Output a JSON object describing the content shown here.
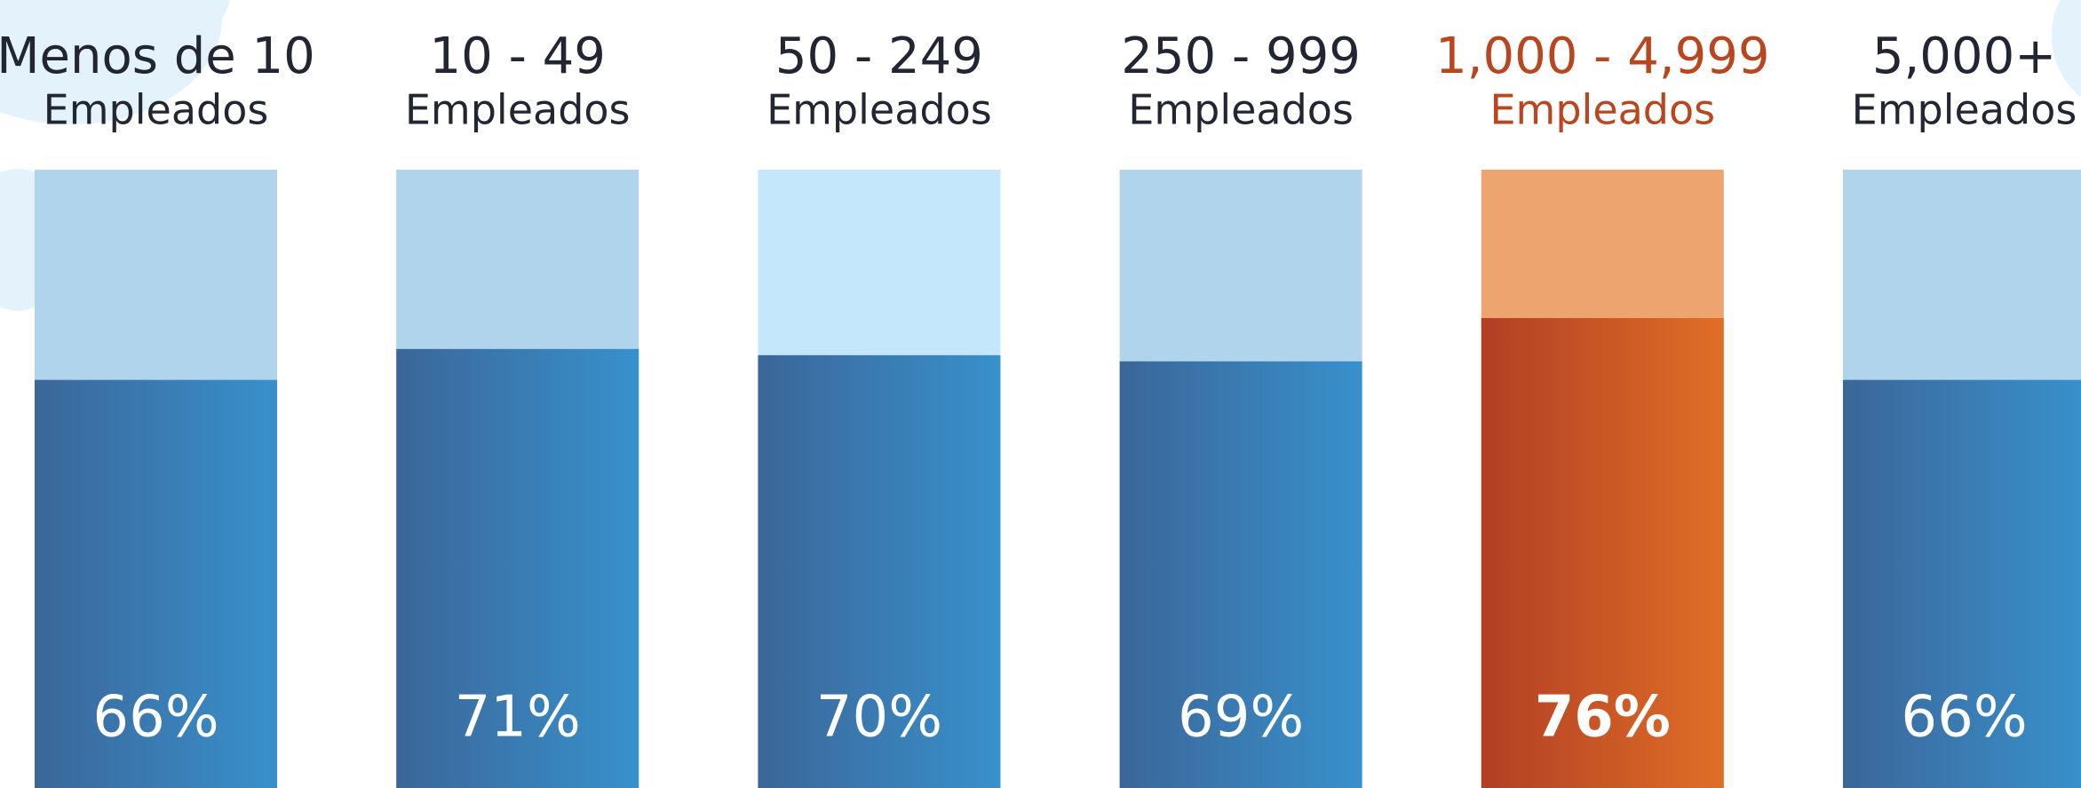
{
  "chart_data": {
    "type": "bar",
    "categories": [
      "Menos de 10",
      "10 - 49",
      "50 - 249",
      "250 - 999",
      "1,000 - 4,999",
      "5,000+"
    ],
    "subcategories": [
      "Empleados",
      "Empleados",
      "Empleados",
      "Empleados",
      "Empleados",
      "Empleados"
    ],
    "values": [
      66,
      71,
      70,
      69,
      76,
      66
    ],
    "value_labels": [
      "66%",
      "71%",
      "70%",
      "69%",
      "76%",
      "66%"
    ],
    "ylim": [
      0,
      100
    ],
    "colors": [
      [
        "#3b6699",
        "#3891cc"
      ],
      [
        "#3b6699",
        "#3891cc"
      ],
      [
        "#3b6699",
        "#3891cc"
      ],
      [
        "#3b6699",
        "#3891cc"
      ],
      [
        "#b23f24",
        "#e06e26"
      ],
      [
        "#3b6699",
        "#3891cc"
      ]
    ],
    "track_colors": [
      "#b0d4eb",
      "#b0d4eb",
      "#c5e7fb",
      "#b0d4eb",
      "#eea46f",
      "#b0d4eb"
    ],
    "label_colors": [
      "#222633",
      "#222633",
      "#222633",
      "#222633",
      "#b9461e",
      "#222633"
    ],
    "value_label_weights": [
      "normal",
      "normal",
      "normal",
      "normal",
      "bold",
      "normal"
    ]
  }
}
